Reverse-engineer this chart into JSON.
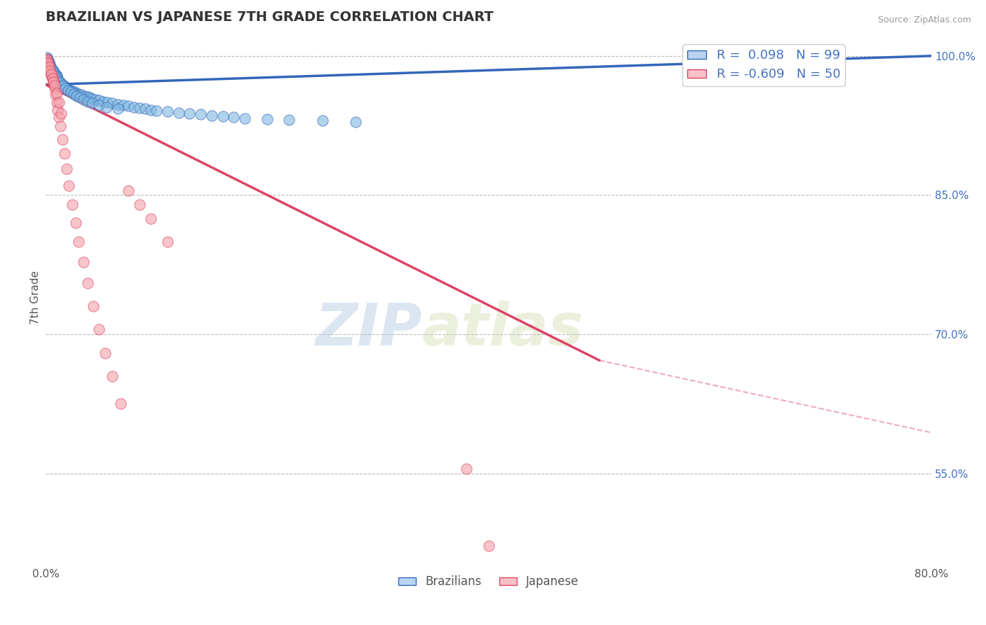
{
  "title": "BRAZILIAN VS JAPANESE 7TH GRADE CORRELATION CHART",
  "source": "Source: ZipAtlas.com",
  "ylabel": "7th Grade",
  "watermark_zip": "ZIP",
  "watermark_atlas": "atlas",
  "xlim": [
    0.0,
    0.8
  ],
  "ylim": [
    0.455,
    1.025
  ],
  "xtick_positions": [
    0.0,
    0.1,
    0.2,
    0.3,
    0.4,
    0.5,
    0.6,
    0.7,
    0.8
  ],
  "xtick_labels": [
    "0.0%",
    "",
    "",
    "",
    "",
    "",
    "",
    "",
    "80.0%"
  ],
  "right_ytick_positions": [
    1.0,
    0.85,
    0.7,
    0.55
  ],
  "right_ytick_labels": [
    "100.0%",
    "85.0%",
    "70.0%",
    "55.0%"
  ],
  "r_brazilian": 0.098,
  "n_brazilian": 99,
  "r_japanese": -0.609,
  "n_japanese": 50,
  "color_brazilian": "#7eb8e0",
  "color_japanese": "#f4a0a8",
  "trend_color_brazilian": "#3366bb",
  "trend_color_japanese": "#dd4466",
  "grid_color": "#bbbbbb",
  "title_color": "#333333",
  "axis_label_color": "#4472c4",
  "legend_box_color_brazilian": "#b8d4f0",
  "legend_box_color_japanese": "#f8c0c8",
  "braz_trend_x0": 0.0,
  "braz_trend_y0": 0.969,
  "braz_trend_x1": 0.8,
  "braz_trend_y1": 1.0,
  "jap_trend_x0": 0.0,
  "jap_trend_y0": 0.969,
  "jap_trend_solid_x1": 0.5,
  "jap_trend_solid_y1": 0.672,
  "jap_trend_dash_x1": 0.8,
  "jap_trend_dash_y1": 0.594,
  "brazilian_x": [
    0.001,
    0.001,
    0.001,
    0.002,
    0.002,
    0.002,
    0.003,
    0.003,
    0.003,
    0.004,
    0.004,
    0.005,
    0.005,
    0.006,
    0.006,
    0.007,
    0.007,
    0.008,
    0.008,
    0.009,
    0.009,
    0.01,
    0.01,
    0.011,
    0.011,
    0.012,
    0.012,
    0.013,
    0.014,
    0.015,
    0.016,
    0.017,
    0.018,
    0.019,
    0.02,
    0.022,
    0.024,
    0.026,
    0.028,
    0.03,
    0.032,
    0.035,
    0.038,
    0.04,
    0.042,
    0.045,
    0.048,
    0.052,
    0.056,
    0.06,
    0.065,
    0.07,
    0.075,
    0.08,
    0.085,
    0.09,
    0.095,
    0.1,
    0.11,
    0.12,
    0.13,
    0.14,
    0.15,
    0.16,
    0.17,
    0.18,
    0.2,
    0.22,
    0.25,
    0.28,
    0.002,
    0.002,
    0.003,
    0.004,
    0.004,
    0.005,
    0.006,
    0.007,
    0.008,
    0.009,
    0.01,
    0.011,
    0.012,
    0.013,
    0.015,
    0.016,
    0.018,
    0.02,
    0.023,
    0.025,
    0.028,
    0.031,
    0.034,
    0.038,
    0.042,
    0.048,
    0.055,
    0.065,
    0.68
  ],
  "brazilian_y": [
    0.998,
    0.996,
    0.994,
    0.995,
    0.993,
    0.991,
    0.992,
    0.99,
    0.988,
    0.989,
    0.987,
    0.986,
    0.984,
    0.985,
    0.983,
    0.984,
    0.982,
    0.981,
    0.979,
    0.98,
    0.978,
    0.979,
    0.977,
    0.975,
    0.974,
    0.973,
    0.972,
    0.971,
    0.97,
    0.969,
    0.968,
    0.967,
    0.966,
    0.965,
    0.964,
    0.963,
    0.962,
    0.961,
    0.96,
    0.959,
    0.958,
    0.957,
    0.956,
    0.955,
    0.954,
    0.953,
    0.952,
    0.951,
    0.95,
    0.949,
    0.948,
    0.947,
    0.946,
    0.945,
    0.944,
    0.943,
    0.942,
    0.941,
    0.94,
    0.939,
    0.938,
    0.937,
    0.936,
    0.935,
    0.934,
    0.933,
    0.932,
    0.931,
    0.93,
    0.929,
    0.997,
    0.995,
    0.993,
    0.991,
    0.989,
    0.987,
    0.985,
    0.983,
    0.981,
    0.979,
    0.977,
    0.975,
    0.973,
    0.971,
    0.969,
    0.967,
    0.965,
    0.963,
    0.961,
    0.959,
    0.957,
    0.955,
    0.953,
    0.951,
    0.949,
    0.947,
    0.945,
    0.943,
    0.997
  ],
  "japanese_x": [
    0.001,
    0.001,
    0.002,
    0.002,
    0.003,
    0.003,
    0.004,
    0.004,
    0.005,
    0.005,
    0.006,
    0.006,
    0.007,
    0.007,
    0.008,
    0.009,
    0.01,
    0.011,
    0.012,
    0.013,
    0.015,
    0.017,
    0.019,
    0.021,
    0.024,
    0.027,
    0.03,
    0.034,
    0.038,
    0.043,
    0.048,
    0.054,
    0.06,
    0.068,
    0.075,
    0.085,
    0.095,
    0.11,
    0.38,
    0.4,
    0.002,
    0.003,
    0.004,
    0.005,
    0.006,
    0.007,
    0.008,
    0.01,
    0.012,
    0.014
  ],
  "japanese_y": [
    0.997,
    0.995,
    0.993,
    0.991,
    0.989,
    0.987,
    0.985,
    0.983,
    0.981,
    0.979,
    0.977,
    0.975,
    0.973,
    0.971,
    0.965,
    0.958,
    0.95,
    0.942,
    0.934,
    0.924,
    0.91,
    0.895,
    0.878,
    0.86,
    0.84,
    0.82,
    0.8,
    0.778,
    0.755,
    0.73,
    0.705,
    0.68,
    0.655,
    0.625,
    0.855,
    0.84,
    0.825,
    0.8,
    0.555,
    0.472,
    0.992,
    0.988,
    0.984,
    0.98,
    0.976,
    0.972,
    0.968,
    0.96,
    0.95,
    0.938
  ]
}
